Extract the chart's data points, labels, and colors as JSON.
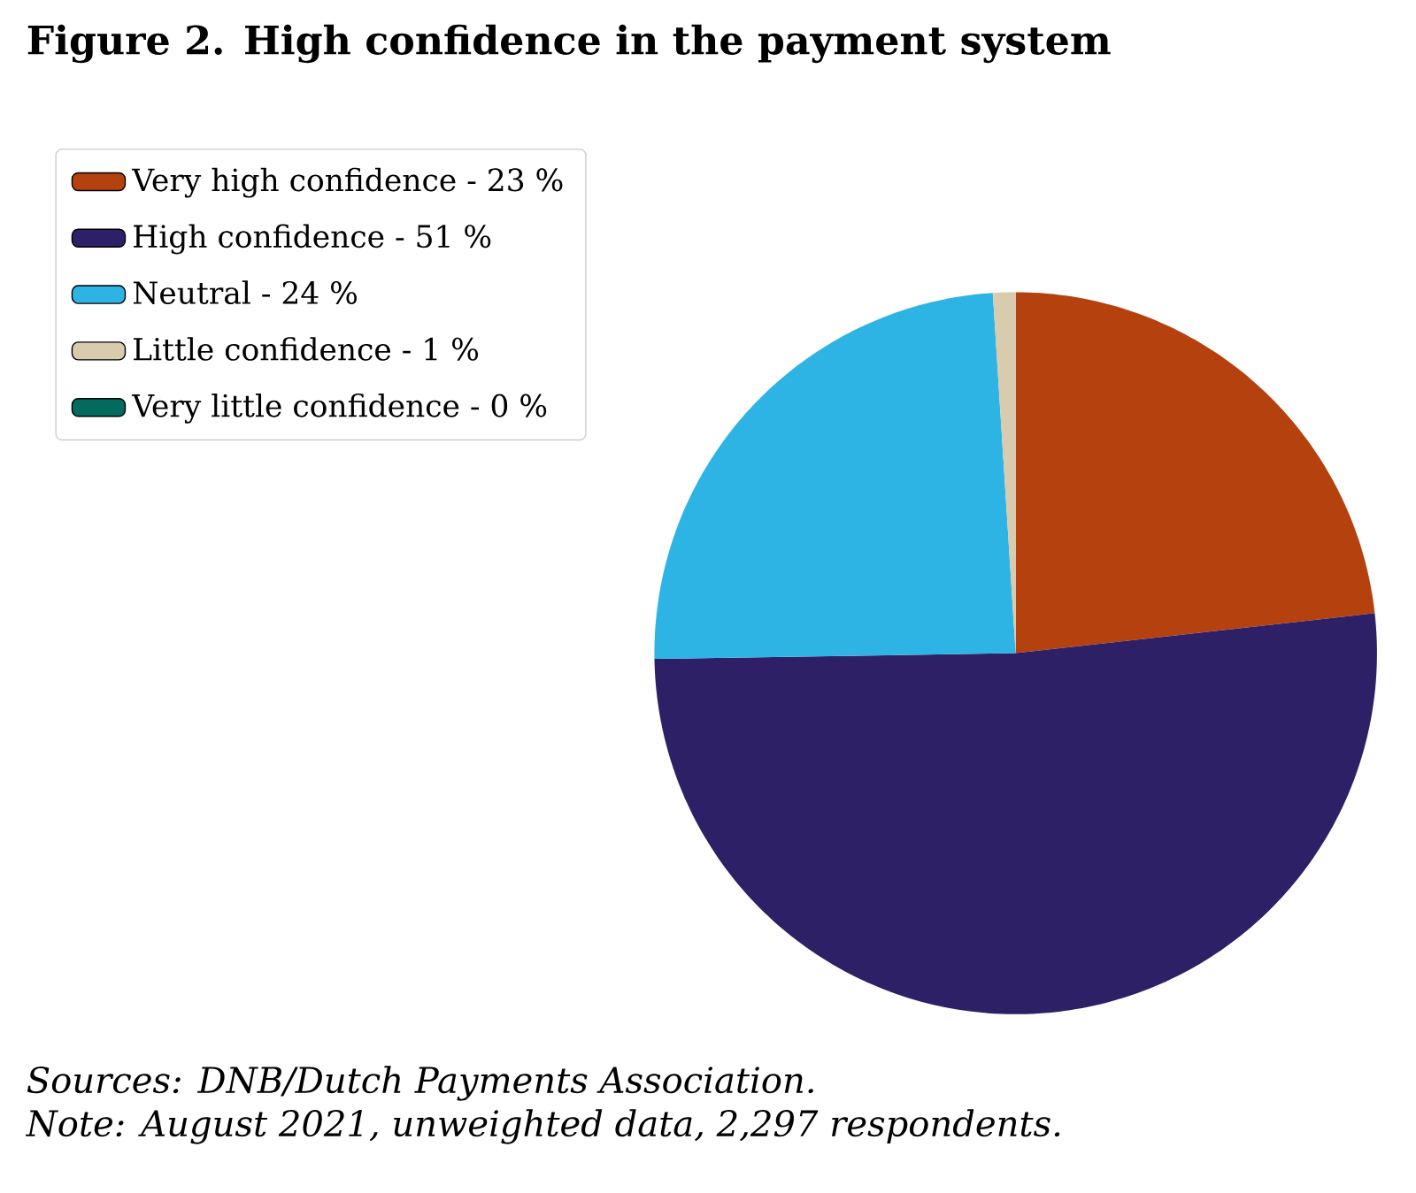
{
  "chart_data": {
    "type": "pie",
    "title": "Figure 2. High confidence in the payment system",
    "categories": [
      "Very high confidence - 23 %",
      "High confidence - 51 %",
      "Neutral - 24 %",
      "Little confidence - 1 %",
      "Very little confidence - 0 %"
    ],
    "values": [
      23,
      51,
      24,
      1,
      0
    ],
    "colors": [
      "#b5410f",
      "#2e2066",
      "#2eb4e4",
      "#d9cbae",
      "#006b5e"
    ],
    "legend": "top left",
    "annotations": [
      "Sources: DNB/Dutch Payments Association.",
      "Note: August 2021, unweighted data, 2,297 respondents."
    ]
  }
}
